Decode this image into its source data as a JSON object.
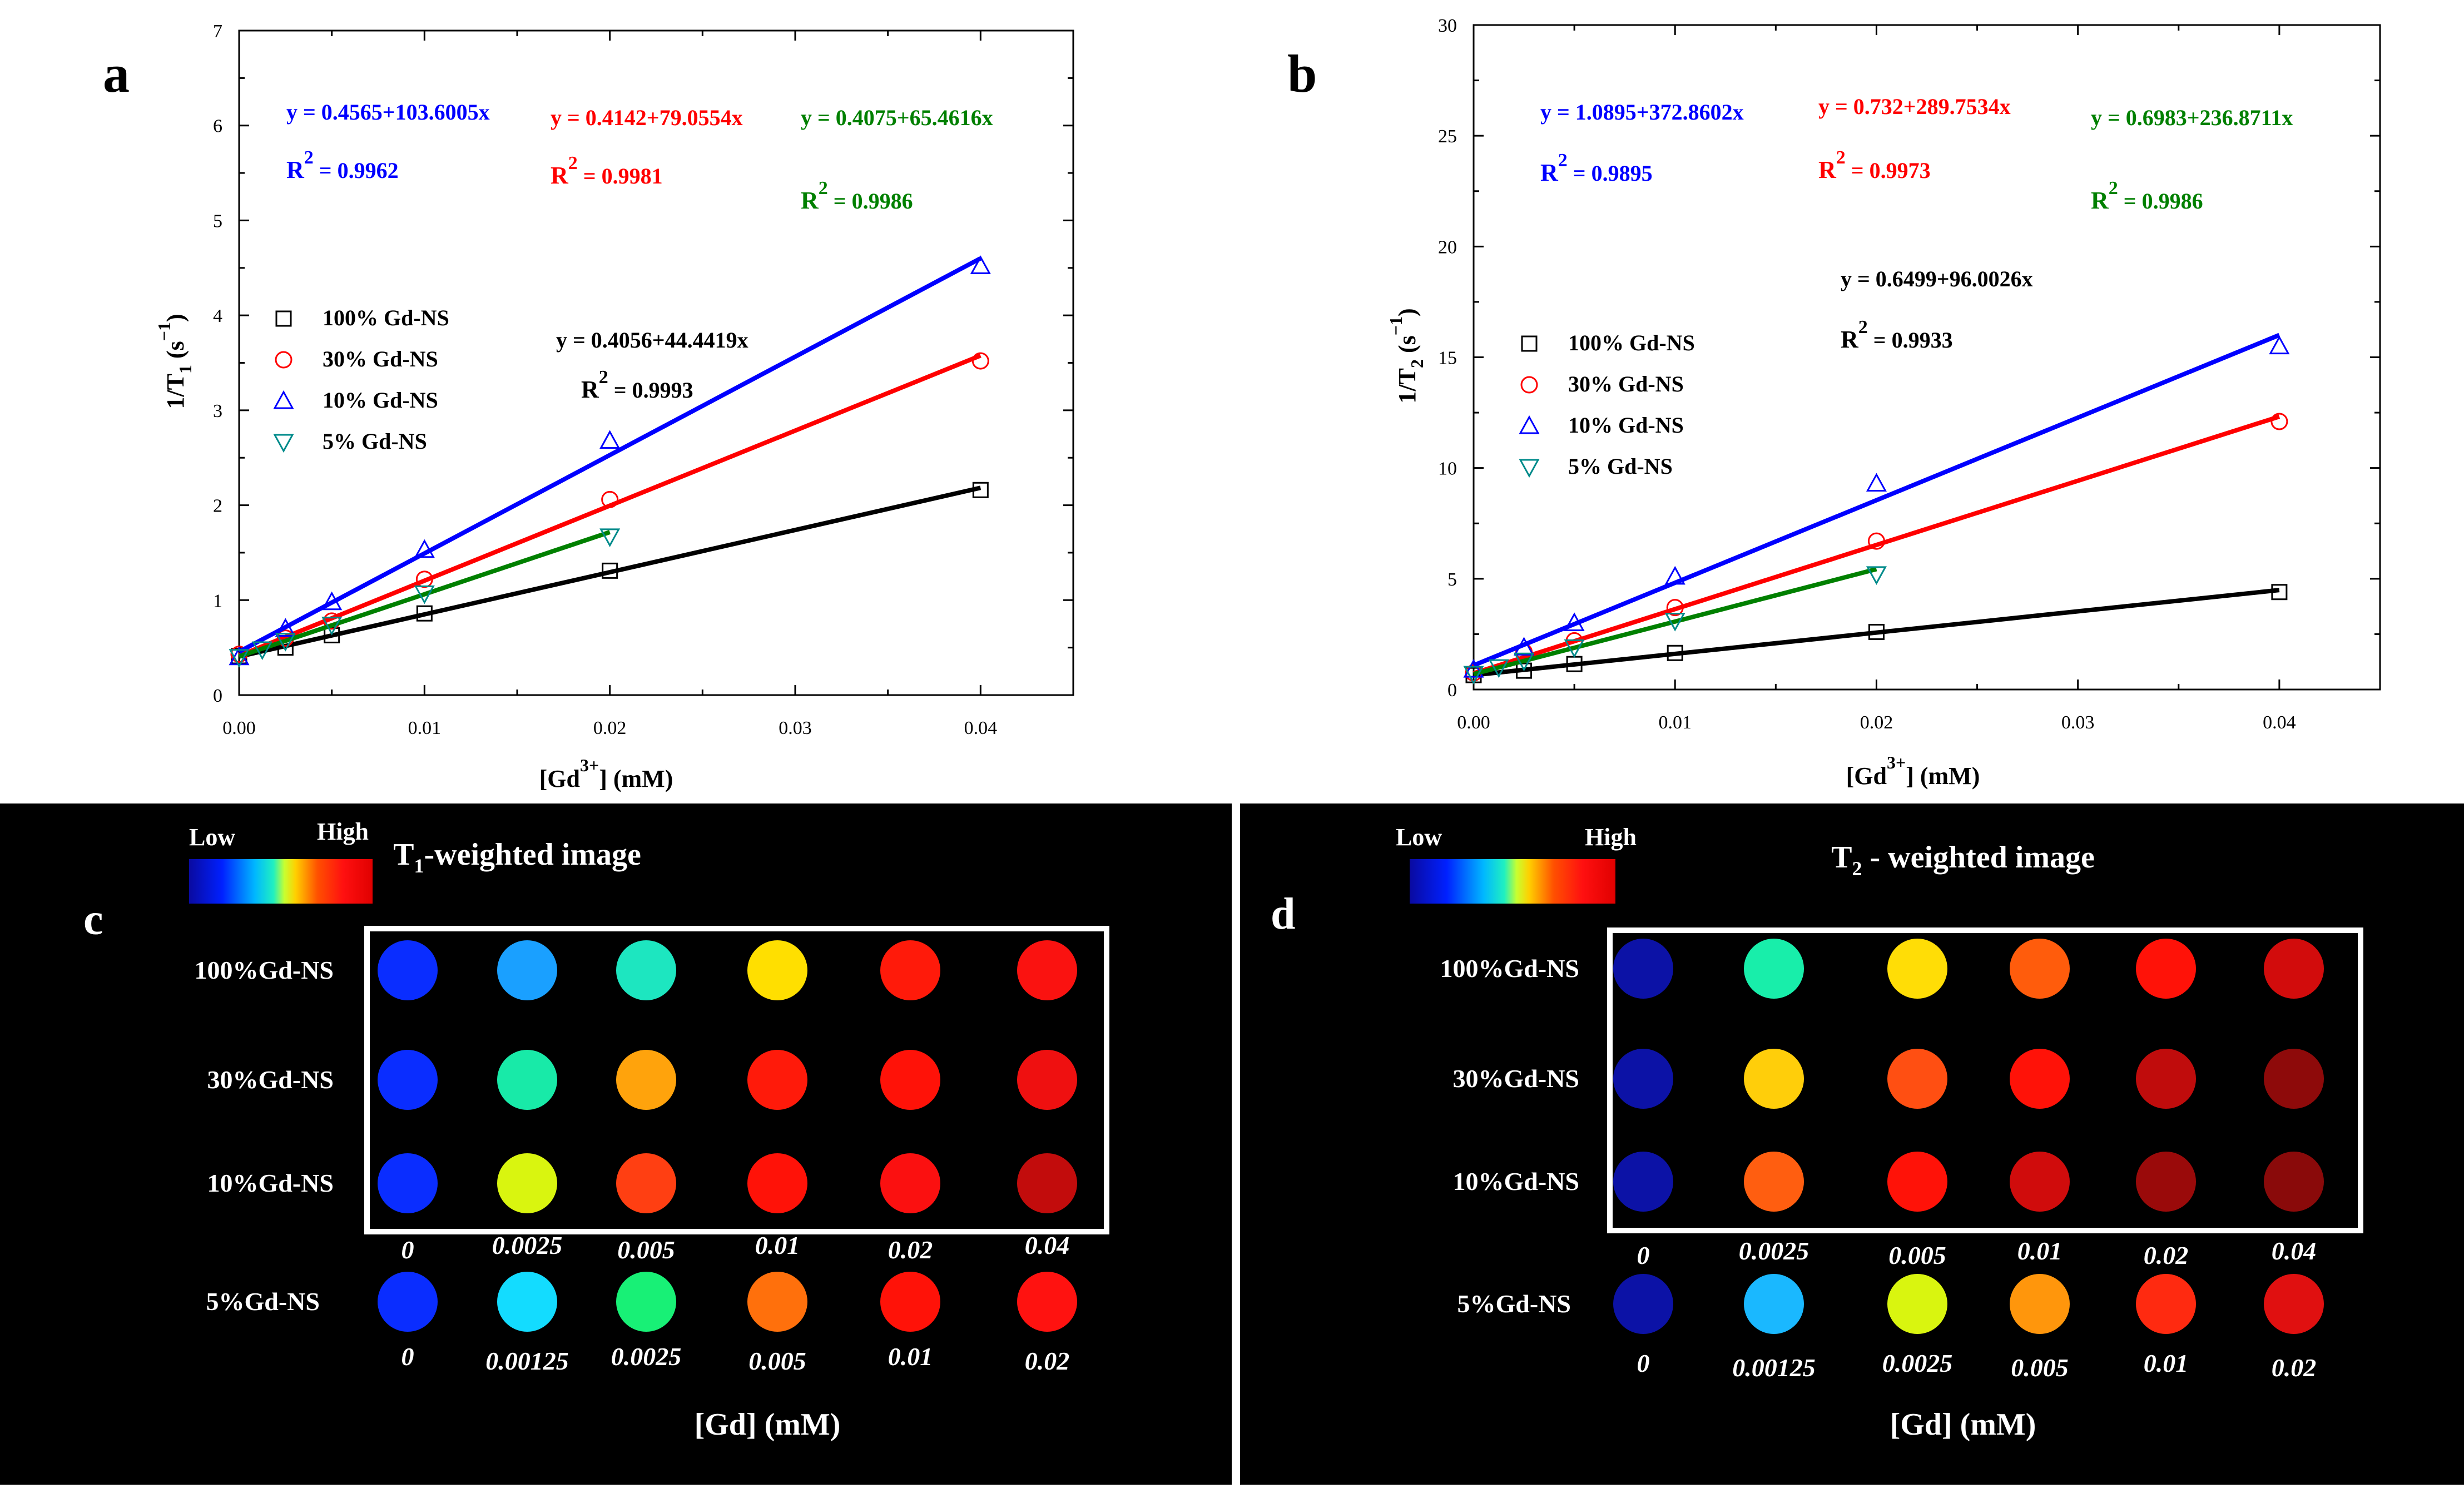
{
  "chart_data": [
    {
      "type": "scatter",
      "panel_label": "a",
      "xlabel_main": "[Gd",
      "xlabel_sup": "3+",
      "xlabel_tail": "] (mM)",
      "ylabel_main": "1/T",
      "ylabel_sub": "1",
      "ylabel_tail": " (s",
      "ylabel_sup": "−1",
      "ylabel_close": ")",
      "xlim": [
        0,
        0.045
      ],
      "ylim": [
        0,
        7
      ],
      "xticks": [
        "0.00",
        "0.01",
        "0.02",
        "0.03",
        "0.04"
      ],
      "yticks": [
        "0",
        "1",
        "2",
        "3",
        "4",
        "5",
        "6",
        "7"
      ],
      "legend": [
        "100% Gd-NS",
        "30% Gd-NS",
        "10% Gd-NS",
        "5% Gd-NS"
      ],
      "series": [
        {
          "name": "100% Gd-NS",
          "color": "#000000",
          "marker": "square",
          "x": [
            0,
            0.0025,
            0.005,
            0.01,
            0.02,
            0.04
          ],
          "y": [
            0.41,
            0.5,
            0.63,
            0.86,
            1.31,
            2.16
          ],
          "fit": {
            "intercept": 0.4056,
            "slope": 44.4419,
            "xmax": 0.04
          },
          "equation": "y = 0.4056+44.4419x",
          "r2_label": "R",
          "r2_sup": "2",
          "r2_value": " = 0.9993"
        },
        {
          "name": "30% Gd-NS",
          "color": "#ff0000",
          "marker": "circle",
          "x": [
            0,
            0.0025,
            0.005,
            0.01,
            0.02,
            0.04
          ],
          "y": [
            0.43,
            0.6,
            0.78,
            1.22,
            2.06,
            3.52
          ],
          "fit": {
            "intercept": 0.4142,
            "slope": 79.0554,
            "xmax": 0.04
          },
          "equation": "y = 0.4142+79.0554x",
          "r2_label": "R",
          "r2_sup": "2",
          "r2_value": " = 0.9981"
        },
        {
          "name": "10% Gd-NS",
          "color": "#0000ff",
          "marker": "triangle-up",
          "x": [
            0,
            0.0025,
            0.005,
            0.01,
            0.02,
            0.04
          ],
          "y": [
            0.4,
            0.7,
            0.98,
            1.53,
            2.68,
            4.52
          ],
          "fit": {
            "intercept": 0.4565,
            "slope": 103.6005,
            "xmax": 0.04
          },
          "equation": "y = 0.4565+103.6005x",
          "r2_label": "R",
          "r2_sup": "2",
          "r2_value": " = 0.9962"
        },
        {
          "name": "5% Gd-NS",
          "color": "#008b8b",
          "marker": "triangle-down",
          "fit_color": "#008000",
          "x": [
            0,
            0.00125,
            0.0025,
            0.005,
            0.01,
            0.02
          ],
          "y": [
            0.4,
            0.48,
            0.57,
            0.74,
            1.07,
            1.67
          ],
          "fit": {
            "intercept": 0.4075,
            "slope": 65.4616,
            "xmax": 0.02
          },
          "equation": "y = 0.4075+65.4616x",
          "r2_label": "R",
          "r2_sup": "2",
          "r2_value": " = 0.9986"
        }
      ]
    },
    {
      "type": "scatter",
      "panel_label": "b",
      "xlabel_main": "[Gd",
      "xlabel_sup": "3+",
      "xlabel_tail": "] (mM)",
      "ylabel_main": "1/T",
      "ylabel_sub": "2",
      "ylabel_tail": " (s",
      "ylabel_sup": "−1",
      "ylabel_close": ")",
      "xlim": [
        0,
        0.045
      ],
      "ylim": [
        0,
        30
      ],
      "xticks": [
        "0.00",
        "0.01",
        "0.02",
        "0.03",
        "0.04"
      ],
      "yticks": [
        "0",
        "5",
        "10",
        "15",
        "20",
        "25",
        "30"
      ],
      "legend": [
        "100% Gd-NS",
        "30% Gd-NS",
        "10% Gd-NS",
        "5% Gd-NS"
      ],
      "series": [
        {
          "name": "100% Gd-NS",
          "color": "#000000",
          "marker": "square",
          "x": [
            0,
            0.0025,
            0.005,
            0.01,
            0.02,
            0.04
          ],
          "y": [
            0.65,
            0.85,
            1.15,
            1.65,
            2.6,
            4.4
          ],
          "fit": {
            "intercept": 0.6499,
            "slope": 96.0026,
            "xmax": 0.04
          },
          "equation": "y = 0.6499+96.0026x",
          "r2_label": "R",
          "r2_sup": "2",
          "r2_value": " = 0.9933"
        },
        {
          "name": "30% Gd-NS",
          "color": "#ff0000",
          "marker": "circle",
          "x": [
            0,
            0.0025,
            0.005,
            0.01,
            0.02,
            0.04
          ],
          "y": [
            0.75,
            1.7,
            2.2,
            3.7,
            6.7,
            12.1
          ],
          "fit": {
            "intercept": 0.732,
            "slope": 289.7534,
            "xmax": 0.04
          },
          "equation": "y = 0.732+289.7534x",
          "r2_label": "R",
          "r2_sup": "2",
          "r2_value": " = 0.9973"
        },
        {
          "name": "10% Gd-NS",
          "color": "#0000ff",
          "marker": "triangle-up",
          "x": [
            0,
            0.0025,
            0.005,
            0.01,
            0.02,
            0.04
          ],
          "y": [
            0.9,
            1.9,
            3.0,
            5.1,
            9.3,
            15.5
          ],
          "fit": {
            "intercept": 1.0895,
            "slope": 372.8602,
            "xmax": 0.04
          },
          "equation": "y = 1.0895+372.8602x",
          "r2_label": "R",
          "r2_sup": "2",
          "r2_value": " = 0.9895"
        },
        {
          "name": "5% Gd-NS",
          "color": "#008b8b",
          "marker": "triangle-down",
          "fit_color": "#008000",
          "x": [
            0,
            0.00125,
            0.0025,
            0.005,
            0.01,
            0.02
          ],
          "y": [
            0.7,
            1.0,
            1.3,
            1.9,
            3.1,
            5.2
          ],
          "fit": {
            "intercept": 0.6983,
            "slope": 236.8711,
            "xmax": 0.02
          },
          "equation": "y = 0.6983+236.8711x",
          "r2_label": "R",
          "r2_sup": "2",
          "r2_value": " = 0.9986"
        }
      ]
    },
    {
      "type": "heatmap",
      "panel_label": "c",
      "title_main": "T",
      "title_sub": "1",
      "title_tail": "-weighted image",
      "colorbar_low": "Low",
      "colorbar_high": "High",
      "xlabel": "[Gd] (mM)",
      "rows": [
        {
          "label": "100%Gd-NS",
          "colors": [
            "#0a2dff",
            "#1aa0ff",
            "#1de6c0",
            "#ffdf00",
            "#ff1a0a",
            "#fa1210"
          ]
        },
        {
          "label": "30%Gd-NS",
          "colors": [
            "#0a2dff",
            "#18eaa8",
            "#ffa30c",
            "#ff1a0a",
            "#ff1208",
            "#ef1010"
          ]
        },
        {
          "label": "10%Gd-NS",
          "colors": [
            "#0a2dff",
            "#d9f50f",
            "#ff3f12",
            "#ff1208",
            "#fb1010",
            "#c20c0c"
          ]
        }
      ],
      "boxed_concentrations": [
        "0",
        "0.0025",
        "0.005",
        "0.01",
        "0.02",
        "0.04"
      ],
      "extra_row": {
        "label": "5%Gd-NS",
        "colors": [
          "#0a2dff",
          "#13dcff",
          "#18f076",
          "#ff700c",
          "#ff1208",
          "#ff1210"
        ]
      },
      "extra_concentrations": [
        "0",
        "0.00125",
        "0.0025",
        "0.005",
        "0.01",
        "0.02"
      ]
    },
    {
      "type": "heatmap",
      "panel_label": "d",
      "title_main": "T",
      "title_sub": "2",
      "title_tail": " - weighted image",
      "colorbar_low": "Low",
      "colorbar_high": "High",
      "xlabel": "[Gd] (mM)",
      "rows": [
        {
          "label": "100%Gd-NS",
          "colors": [
            "#0c12a6",
            "#18eeaa",
            "#ffdd06",
            "#ff5c0c",
            "#ff1208",
            "#d20c0c"
          ]
        },
        {
          "label": "30%Gd-NS",
          "colors": [
            "#0c12a6",
            "#ffce0a",
            "#ff4f12",
            "#ff1208",
            "#c00c0c",
            "#8e0a0a"
          ]
        },
        {
          "label": "10%Gd-NS",
          "colors": [
            "#0c12a6",
            "#ff5e10",
            "#ff1208",
            "#d00c0c",
            "#9a0a0a",
            "#8a0a0a"
          ]
        }
      ],
      "boxed_concentrations": [
        "0",
        "0.0025",
        "0.005",
        "0.01",
        "0.02",
        "0.04"
      ],
      "extra_row": {
        "label": "5%Gd-NS",
        "colors": [
          "#0c12a6",
          "#1ab8ff",
          "#d9f50f",
          "#ff960c",
          "#ff2a10",
          "#e01010"
        ]
      },
      "extra_concentrations": [
        "0",
        "0.00125",
        "0.0025",
        "0.005",
        "0.01",
        "0.02"
      ]
    }
  ]
}
